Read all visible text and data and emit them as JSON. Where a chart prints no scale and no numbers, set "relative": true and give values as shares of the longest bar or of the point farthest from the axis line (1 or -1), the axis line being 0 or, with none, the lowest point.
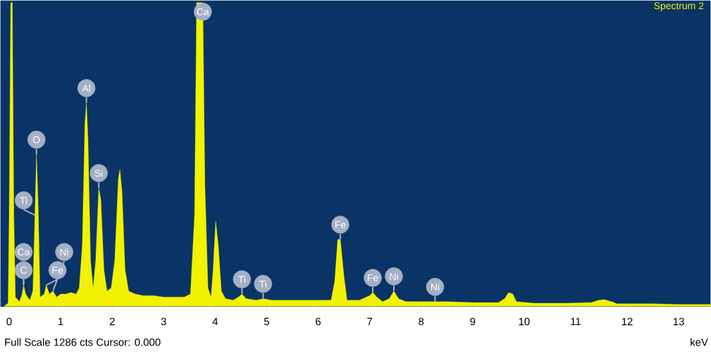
{
  "chart_data": {
    "type": "area",
    "relative": true,
    "color": "#f2f200",
    "xlabel": "keV",
    "xlim": [
      -0.17,
      13.62
    ],
    "xticks": [
      0,
      1,
      2,
      3,
      4,
      5,
      6,
      7,
      8,
      9,
      10,
      11,
      12,
      13
    ],
    "x": [
      -0.1,
      -0.02,
      0.0,
      0.03,
      0.06,
      0.09,
      0.12,
      0.2,
      0.25,
      0.28,
      0.32,
      0.4,
      0.46,
      0.5,
      0.53,
      0.56,
      0.6,
      0.68,
      0.72,
      0.78,
      0.85,
      0.92,
      1.0,
      1.1,
      1.2,
      1.3,
      1.36,
      1.42,
      1.47,
      1.5,
      1.53,
      1.58,
      1.63,
      1.68,
      1.74,
      1.78,
      1.84,
      1.9,
      1.98,
      2.05,
      2.12,
      2.15,
      2.19,
      2.25,
      2.32,
      2.45,
      2.6,
      2.8,
      3.0,
      3.2,
      3.4,
      3.52,
      3.6,
      3.64,
      3.76,
      3.8,
      3.86,
      3.92,
      3.96,
      4.01,
      4.06,
      4.12,
      4.2,
      4.35,
      4.45,
      4.52,
      4.6,
      4.8,
      4.93,
      5.1,
      5.4,
      5.7,
      6.0,
      6.25,
      6.32,
      6.38,
      6.43,
      6.5,
      6.56,
      6.8,
      7.0,
      7.06,
      7.14,
      7.25,
      7.38,
      7.47,
      7.56,
      7.7,
      8.0,
      8.27,
      8.5,
      9.0,
      9.5,
      9.62,
      9.7,
      9.78,
      9.85,
      10.2,
      10.8,
      11.3,
      11.45,
      11.55,
      11.7,
      11.8,
      12.5,
      13.0,
      13.62
    ],
    "values": [
      0,
      0.01,
      0.3,
      1.0,
      1.0,
      0.3,
      0.03,
      0.015,
      0.04,
      0.07,
      0.04,
      0.02,
      0.05,
      0.3,
      0.5,
      0.35,
      0.03,
      0.04,
      0.07,
      0.04,
      0.05,
      0.03,
      0.04,
      0.04,
      0.045,
      0.04,
      0.06,
      0.2,
      0.6,
      0.67,
      0.55,
      0.15,
      0.06,
      0.15,
      0.39,
      0.35,
      0.12,
      0.05,
      0.06,
      0.15,
      0.42,
      0.45,
      0.38,
      0.12,
      0.05,
      0.04,
      0.035,
      0.035,
      0.03,
      0.03,
      0.03,
      0.04,
      0.3,
      1.0,
      1.0,
      0.4,
      0.06,
      0.03,
      0.12,
      0.28,
      0.2,
      0.05,
      0.025,
      0.02,
      0.03,
      0.04,
      0.025,
      0.02,
      0.025,
      0.02,
      0.02,
      0.02,
      0.02,
      0.02,
      0.08,
      0.22,
      0.22,
      0.1,
      0.02,
      0.02,
      0.035,
      0.045,
      0.03,
      0.015,
      0.025,
      0.05,
      0.025,
      0.015,
      0.015,
      0.015,
      0.015,
      0.012,
      0.012,
      0.025,
      0.045,
      0.04,
      0.015,
      0.01,
      0.01,
      0.012,
      0.02,
      0.022,
      0.015,
      0.008,
      0.008,
      0.006,
      0.006
    ],
    "annotations": [
      "Spectrum 2",
      {
        "text": "Ca",
        "x": 3.76,
        "y": 1.0
      },
      {
        "text": "Al",
        "x": 1.5,
        "y": 0.67
      },
      {
        "text": "O",
        "x": 0.53,
        "y": 0.5
      },
      {
        "text": "Ti",
        "x": 0.5,
        "y": 0.3
      },
      {
        "text": "Fe",
        "x": 0.72,
        "y": 0.07
      },
      {
        "text": "Si",
        "x": 1.74,
        "y": 0.39
      },
      {
        "text": "C",
        "x": 0.28,
        "y": 0.07
      },
      {
        "text": "Ca",
        "x": 0.28,
        "y": 0.07
      },
      {
        "text": "Ni",
        "x": 0.85,
        "y": 0.05
      },
      {
        "text": "Ti",
        "x": 4.52,
        "y": 0.04
      },
      {
        "text": "Ti",
        "x": 4.93,
        "y": 0.025
      },
      {
        "text": "Fe",
        "x": 6.43,
        "y": 0.22
      },
      {
        "text": "Fe",
        "x": 7.06,
        "y": 0.045
      },
      {
        "text": "Ni",
        "x": 7.47,
        "y": 0.05
      },
      {
        "text": "Ni",
        "x": 8.27,
        "y": 0.015
      },
      "Full Scale 1286 cts Cursor: 0.000"
    ]
  }
}
